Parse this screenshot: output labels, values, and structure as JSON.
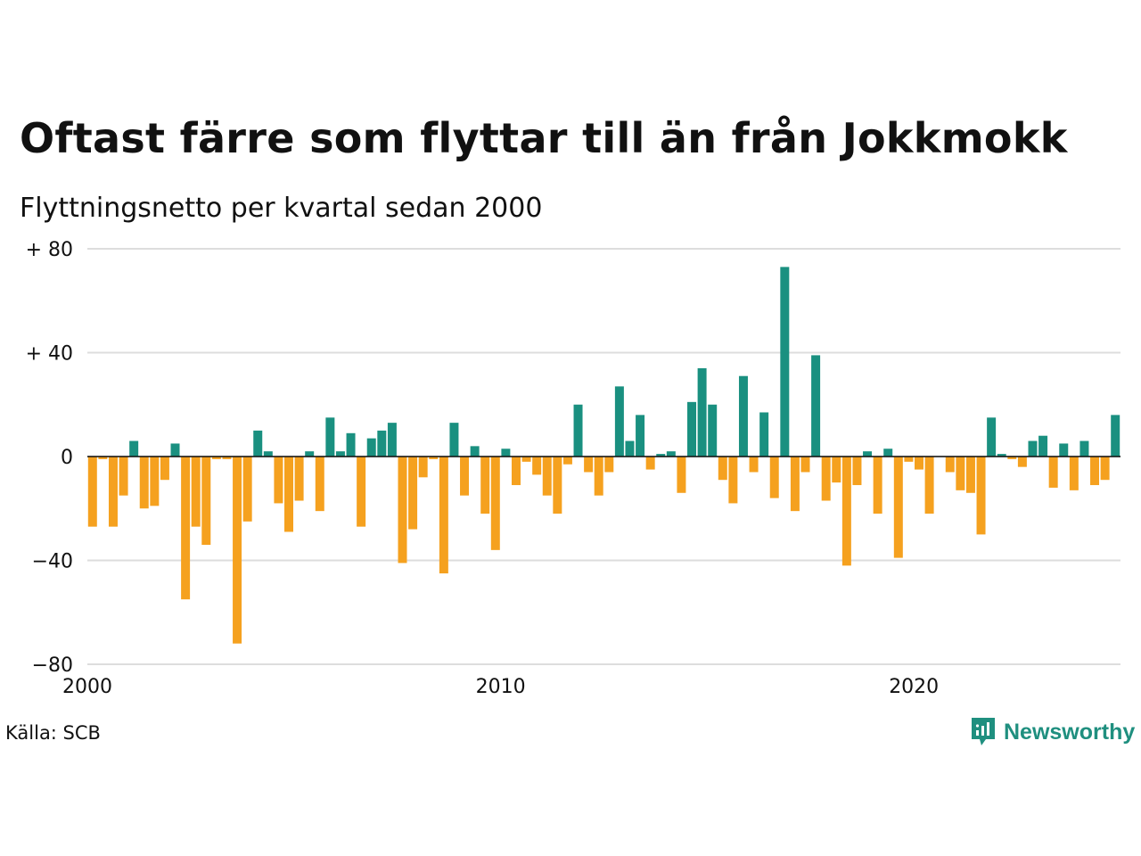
{
  "title": "Oftast färre som flyttar till än från Jokkmokk",
  "subtitle": "Flyttningsnetto per kvartal sedan 2000",
  "source": "Källa: SCB",
  "logo": {
    "text": "Newsworthy",
    "icon": "newsworthy-chart-icon",
    "color": "#1f8f7f"
  },
  "colors": {
    "positive": "#1a9080",
    "negative": "#f5a11f",
    "grid": "#dddddd",
    "axis": "#111111"
  },
  "chart_data": {
    "type": "bar",
    "title": "Oftast färre som flyttar till än från Jokkmokk",
    "subtitle": "Flyttningsnetto per kvartal sedan 2000",
    "xlabel": "",
    "ylabel": "",
    "ylim": [
      -80,
      80
    ],
    "y_ticks": [
      80,
      40,
      0,
      -40,
      -80
    ],
    "y_tick_labels": [
      "+ 80",
      "+ 40",
      "0",
      "−40",
      "−80"
    ],
    "x_ticks": [
      2000,
      2010,
      2020
    ],
    "x_tick_labels": [
      "2000",
      "2010",
      "2020"
    ],
    "x_start_year": 2000,
    "periods_per_year": 4,
    "grid": true,
    "values": [
      -27,
      -1,
      -27,
      -15,
      6,
      -20,
      -19,
      -9,
      5,
      -55,
      -27,
      -34,
      -1,
      -1,
      -72,
      -25,
      10,
      2,
      -18,
      -29,
      -17,
      2,
      -21,
      15,
      2,
      9,
      -27,
      7,
      10,
      13,
      -41,
      -28,
      -8,
      -1,
      -45,
      13,
      -15,
      4,
      -22,
      -36,
      3,
      -11,
      -2,
      -7,
      -15,
      -22,
      -3,
      20,
      -6,
      -15,
      -6,
      27,
      6,
      16,
      -5,
      1,
      2,
      -14,
      21,
      34,
      20,
      -9,
      -18,
      31,
      -6,
      17,
      -16,
      73,
      -21,
      -6,
      39,
      -17,
      -10,
      -42,
      -11,
      2,
      -22,
      3,
      -39,
      -2,
      -5,
      -22,
      0,
      -6,
      -13,
      -14,
      -30,
      15,
      1,
      -1,
      -4,
      6,
      8,
      -12,
      5,
      -13,
      6,
      -11,
      -9,
      16
    ]
  }
}
